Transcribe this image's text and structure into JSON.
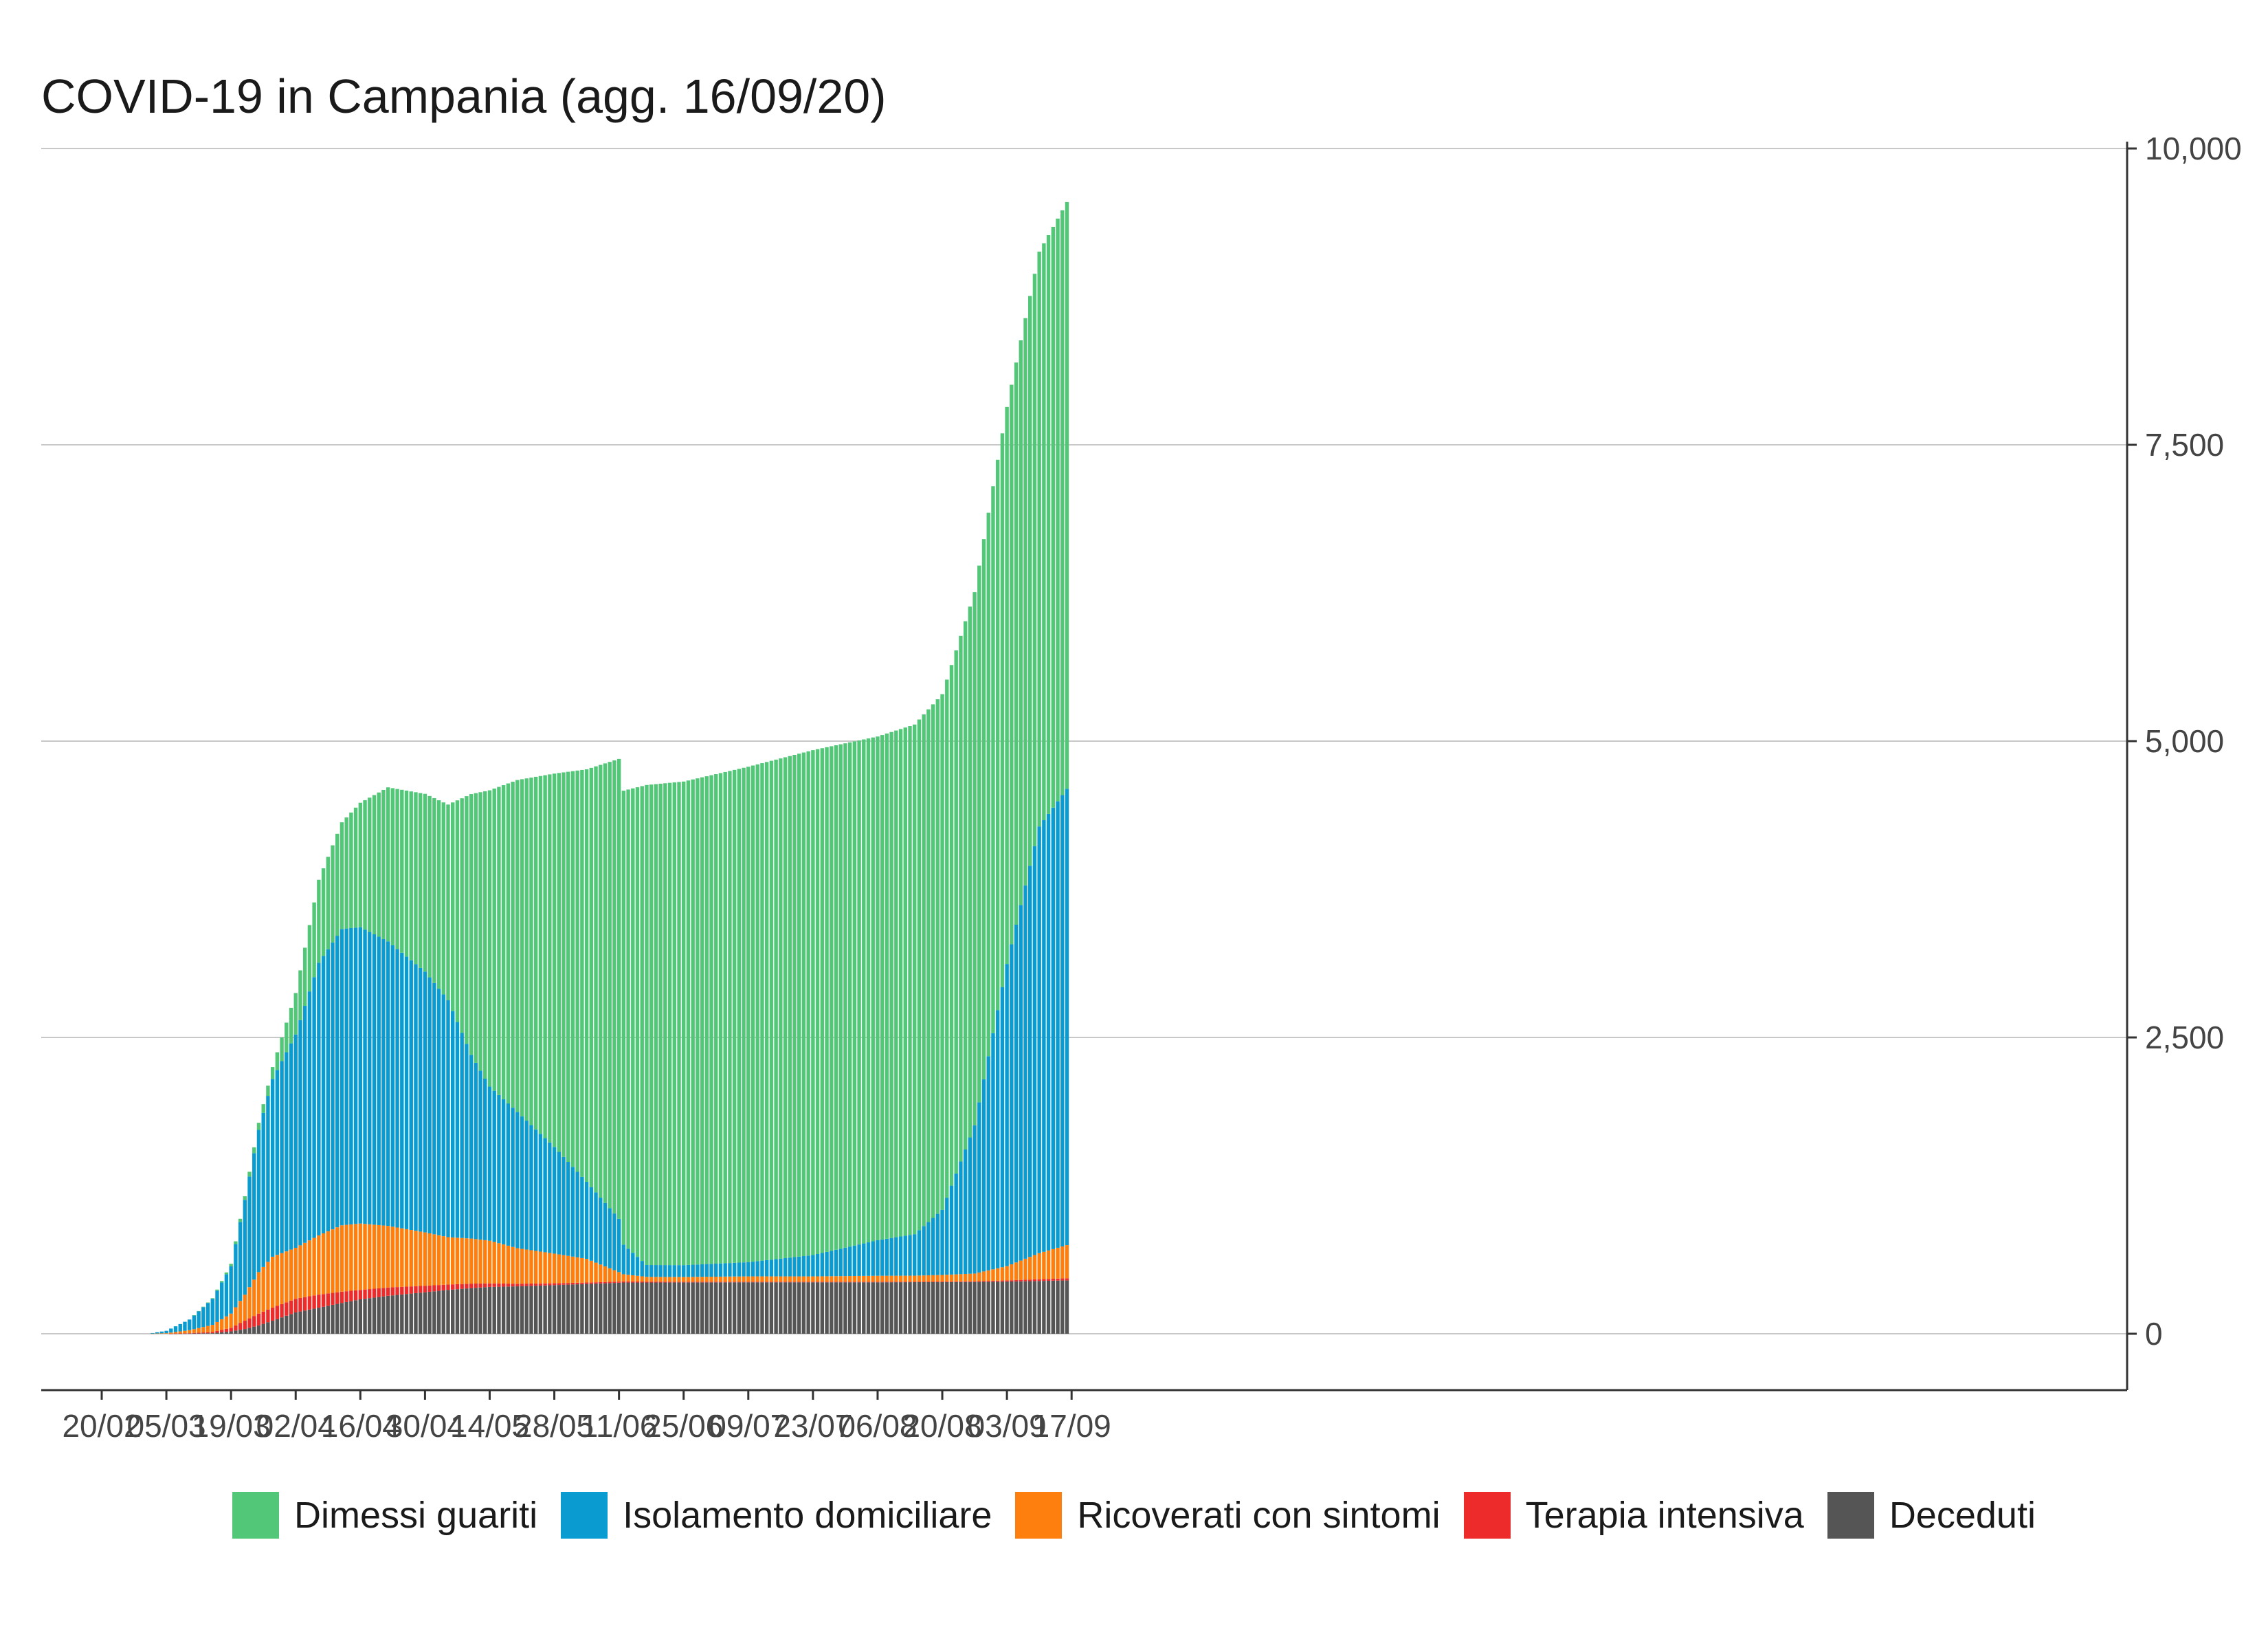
{
  "chart_data": {
    "type": "bar",
    "stacked": true,
    "title": "COVID-19 in Campania (agg. 16/09/20)",
    "xlabel": "",
    "ylabel": "",
    "ylim": [
      0,
      10000
    ],
    "y_ticks": [
      0,
      2500,
      5000,
      7500,
      10000
    ],
    "y_tick_labels": [
      "0",
      "2,500",
      "5,000",
      "7,500",
      "10,000"
    ],
    "y_axis_side": "right",
    "grid": true,
    "legend_position": "bottom",
    "x_start": "2020-02-20",
    "x_end": "2020-09-17",
    "x_tick_labels": [
      "20/02",
      "05/03",
      "19/03",
      "02/04",
      "16/04",
      "30/04",
      "14/05",
      "28/05",
      "11/06",
      "25/06",
      "09/07",
      "23/07",
      "06/08",
      "20/08",
      "03/09",
      "17/09"
    ],
    "series_order": [
      "Deceduti",
      "Terapia intensiva",
      "Ricoverati con sintomi",
      "Isolamento domiciliare",
      "Dimessi guariti"
    ],
    "colors": {
      "Deceduti": "#555555",
      "Terapia intensiva": "#ee2b2b",
      "Ricoverati con sintomi": "#ff7f0e",
      "Isolamento domiciliare": "#0a9bd0",
      "Dimessi guariti": "#52c778"
    },
    "legend": [
      "Dimessi guariti",
      "Isolamento domiciliare",
      "Ricoverati con sintomi",
      "Terapia intensiva",
      "Deceduti"
    ],
    "data_start": "2020-03-01",
    "data_end": "2020-09-16",
    "anchor_dates": [
      "2020-03-01",
      "2020-03-05",
      "2020-03-10",
      "2020-03-15",
      "2020-03-19",
      "2020-03-22",
      "2020-03-25",
      "2020-03-28",
      "2020-04-02",
      "2020-04-07",
      "2020-04-12",
      "2020-04-16",
      "2020-04-22",
      "2020-04-30",
      "2020-05-05",
      "2020-05-10",
      "2020-05-14",
      "2020-05-20",
      "2020-05-28",
      "2020-06-04",
      "2020-06-11",
      "2020-06-12",
      "2020-06-17",
      "2020-06-25",
      "2020-07-09",
      "2020-07-23",
      "2020-08-06",
      "2020-08-14",
      "2020-08-20",
      "2020-08-27",
      "2020-09-03",
      "2020-09-10",
      "2020-09-16"
    ],
    "Deceduti": [
      0,
      0,
      2,
      5,
      20,
      40,
      70,
      110,
      180,
      220,
      260,
      290,
      320,
      350,
      370,
      385,
      395,
      400,
      410,
      420,
      430,
      432,
      432,
      433,
      434,
      434,
      434,
      435,
      436,
      437,
      440,
      445,
      450
    ],
    "Terapia intensiva": [
      0,
      0,
      3,
      10,
      30,
      70,
      100,
      110,
      115,
      110,
      95,
      80,
      70,
      55,
      45,
      38,
      30,
      22,
      16,
      12,
      10,
      10,
      8,
      6,
      5,
      5,
      5,
      5,
      5,
      6,
      10,
      15,
      18
    ],
    "Ricoverati con sintomi": [
      0,
      5,
      25,
      60,
      120,
      220,
      350,
      430,
      430,
      500,
      560,
      560,
      520,
      450,
      400,
      380,
      360,
      300,
      250,
      200,
      80,
      60,
      40,
      40,
      45,
      45,
      50,
      50,
      55,
      65,
      120,
      220,
      280
    ],
    "Isolamento domiciliare": [
      0,
      20,
      90,
      220,
      400,
      800,
      1200,
      1500,
      1800,
      2300,
      2500,
      2500,
      2400,
      2200,
      2000,
      1550,
      1300,
      1150,
      900,
      650,
      450,
      250,
      100,
      100,
      120,
      180,
      300,
      350,
      550,
      1250,
      2550,
      3600,
      3850
    ],
    "Dimessi guariti": [
      0,
      0,
      0,
      5,
      20,
      30,
      60,
      100,
      350,
      700,
      900,
      1050,
      1300,
      1500,
      1650,
      2200,
      2500,
      2800,
      3150,
      3480,
      3880,
      3830,
      4050,
      4080,
      4180,
      4260,
      4250,
      4300,
      4350,
      4500,
      4700,
      4850,
      4950
    ]
  }
}
